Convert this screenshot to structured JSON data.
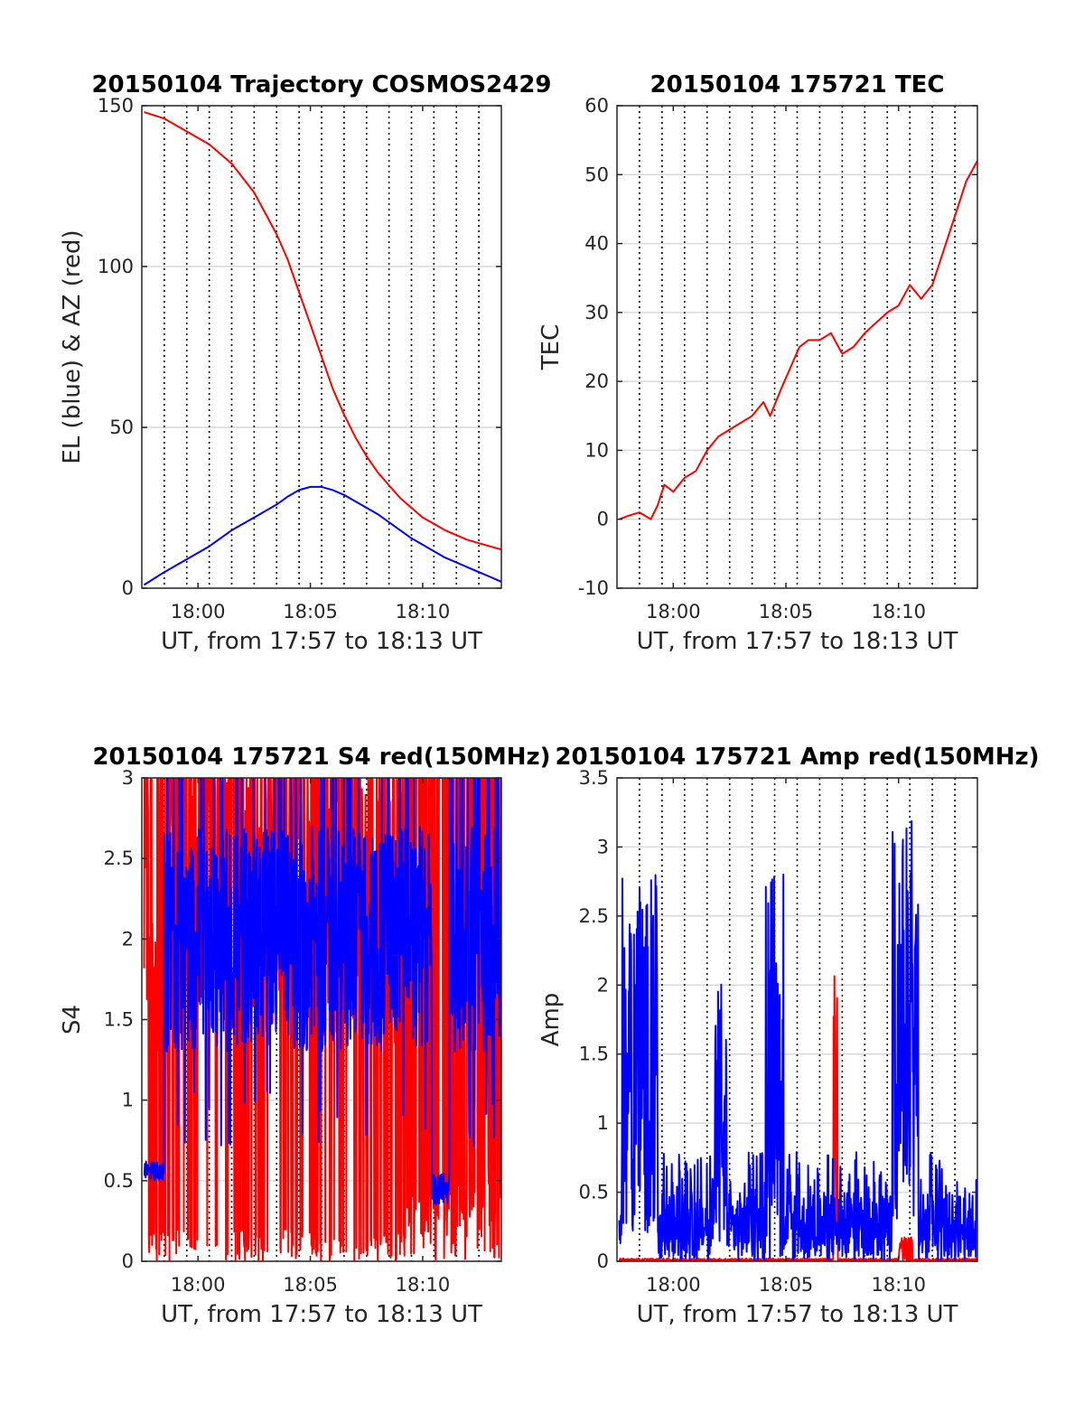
{
  "figure": {
    "background": "#ffffff",
    "grid_color": "#d9d9d9",
    "vgrid_color": "#000000"
  },
  "chart_data": [
    {
      "type": "line",
      "title": "20150104 Trajectory COSMOS2429",
      "xlabel": "UT, from 17:57 to 18:13 UT",
      "ylabel": "EL (blue) & AZ (red)",
      "xlim": [
        17.5,
        33.5
      ],
      "ylim": [
        0,
        150
      ],
      "yticks": [
        0,
        50,
        100,
        150
      ],
      "ytick_labels": [
        "0",
        "50",
        "100",
        "150"
      ],
      "xticks": [
        20,
        25,
        30
      ],
      "xtick_labels": [
        "18:00",
        "18:05",
        "18:10"
      ],
      "vlines": [
        18.5,
        19.5,
        20.5,
        21.5,
        22.5,
        23.5,
        24.5,
        25.5,
        26.5,
        27.5,
        28.5,
        29.5,
        30.5,
        31.5,
        32.5
      ],
      "grid": true,
      "series": [
        {
          "color": "#ff0000",
          "x": [
            17.6,
            18.5,
            19.5,
            20.5,
            21.5,
            22.5,
            23.5,
            24.0,
            24.5,
            25.0,
            25.5,
            26.0,
            26.5,
            27.0,
            27.5,
            28.0,
            28.5,
            29.0,
            29.5,
            30.0,
            30.5,
            31.0,
            31.5,
            32.0,
            32.5,
            33.0,
            33.5
          ],
          "values": [
            148,
            146,
            142,
            138,
            132,
            123,
            110,
            102,
            92,
            82,
            72,
            62,
            54,
            47,
            41,
            36,
            32,
            28,
            25,
            22,
            20,
            18,
            16.5,
            15,
            14,
            13,
            12
          ]
        },
        {
          "color": "#0000ff",
          "x": [
            17.6,
            18.5,
            19.5,
            20.5,
            21.5,
            22.5,
            23.5,
            24.0,
            24.5,
            25.0,
            25.5,
            26.0,
            26.5,
            27.0,
            27.5,
            28.0,
            28.5,
            29.0,
            29.5,
            30.0,
            30.5,
            31.0,
            31.5,
            32.0,
            32.5,
            33.0,
            33.5
          ],
          "values": [
            1,
            5,
            9,
            13,
            18,
            22,
            26,
            28.5,
            30.5,
            31.5,
            31.5,
            30.5,
            29,
            27,
            25,
            23,
            20.5,
            18,
            15.5,
            13.5,
            11.5,
            9.5,
            8,
            6.5,
            5,
            3.5,
            2
          ]
        }
      ]
    },
    {
      "type": "line",
      "title": "20150104 175721 TEC",
      "xlabel": "UT, from 17:57 to 18:13 UT",
      "ylabel": "TEC",
      "xlim": [
        17.5,
        33.5
      ],
      "ylim": [
        -10,
        60
      ],
      "yticks": [
        -10,
        0,
        10,
        20,
        30,
        40,
        50,
        60
      ],
      "ytick_labels": [
        "-10",
        "0",
        "10",
        "20",
        "30",
        "40",
        "50",
        "60"
      ],
      "xticks": [
        20,
        25,
        30
      ],
      "xtick_labels": [
        "18:00",
        "18:05",
        "18:10"
      ],
      "vlines": [
        18.5,
        19.5,
        20.5,
        21.5,
        22.5,
        23.5,
        24.5,
        25.5,
        26.5,
        27.5,
        28.5,
        29.5,
        30.5,
        31.5,
        32.5
      ],
      "grid": true,
      "series": [
        {
          "color": "#ff0000",
          "x": [
            17.6,
            18.0,
            18.5,
            19.0,
            19.3,
            19.6,
            20.0,
            20.5,
            21.0,
            21.5,
            22.0,
            22.5,
            23.0,
            23.5,
            24.0,
            24.3,
            24.8,
            25.2,
            25.6,
            26.0,
            26.5,
            27.0,
            27.5,
            28.0,
            28.5,
            29.0,
            29.5,
            30.0,
            30.5,
            31.0,
            31.5,
            32.0,
            32.5,
            33.0,
            33.5
          ],
          "values": [
            0,
            0.5,
            1,
            0,
            2,
            5,
            4,
            6,
            7,
            10,
            12,
            13,
            14,
            15,
            17,
            15,
            19,
            22,
            25,
            26,
            26,
            27,
            24,
            25,
            27,
            28.5,
            30,
            31,
            34,
            32,
            34,
            39,
            44,
            49,
            52
          ]
        }
      ]
    },
    {
      "type": "line",
      "title": "20150104 175721 S4 red(150MHz)",
      "xlabel": "UT, from 17:57 to 18:13 UT",
      "ylabel": "S4",
      "xlim": [
        17.5,
        33.5
      ],
      "ylim": [
        0,
        3
      ],
      "yticks": [
        0,
        0.5,
        1,
        1.5,
        2,
        2.5,
        3
      ],
      "ytick_labels": [
        "0",
        "0.5",
        "1",
        "1.5",
        "2",
        "2.5",
        "3"
      ],
      "xticks": [
        20,
        25,
        30
      ],
      "xtick_labels": [
        "18:00",
        "18:05",
        "18:10"
      ],
      "vlines": [
        18.5,
        19.5,
        20.5,
        21.5,
        22.5,
        23.5,
        24.5,
        25.5,
        26.5,
        27.5,
        28.5,
        29.5,
        30.5,
        31.5,
        32.5
      ],
      "grid": true,
      "series": [
        {
          "color": "#ff0000",
          "noise": "s4red"
        },
        {
          "color": "#0000ff",
          "noise": "s4blue"
        }
      ]
    },
    {
      "type": "line",
      "title": "20150104 175721 Amp red(150MHz)",
      "xlabel": "UT, from 17:57 to 18:13 UT",
      "ylabel": "Amp",
      "xlim": [
        17.5,
        33.5
      ],
      "ylim": [
        0,
        3.5
      ],
      "yticks": [
        0,
        0.5,
        1,
        1.5,
        2,
        2.5,
        3,
        3.5
      ],
      "ytick_labels": [
        "0",
        "0.5",
        "1",
        "1.5",
        "2",
        "2.5",
        "3",
        "3.5"
      ],
      "xticks": [
        20,
        25,
        30
      ],
      "xtick_labels": [
        "18:00",
        "18:05",
        "18:10"
      ],
      "vlines": [
        18.5,
        19.5,
        20.5,
        21.5,
        22.5,
        23.5,
        24.5,
        25.5,
        26.5,
        27.5,
        28.5,
        29.5,
        30.5,
        31.5,
        32.5
      ],
      "grid": true,
      "series": [
        {
          "color": "#ff0000",
          "noise": "ampred"
        },
        {
          "color": "#0000ff",
          "noise": "ampblue"
        }
      ]
    }
  ]
}
